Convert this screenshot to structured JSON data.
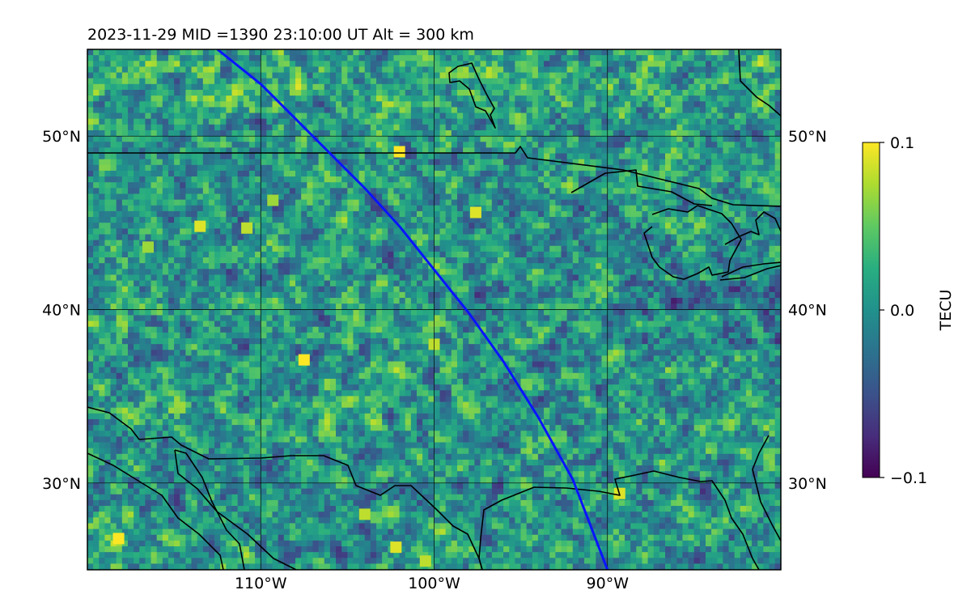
{
  "title": "2023-11-29  MID =1390    23:10:00  UT  Alt = 300 km",
  "colors": {
    "track": "#0a14ff",
    "coast": "#000000",
    "grid": "#000000",
    "viridis": [
      "#440154",
      "#472d7b",
      "#3b528b",
      "#2c728e",
      "#21918c",
      "#28ae80",
      "#5ec962",
      "#addc30",
      "#fde725"
    ]
  },
  "colorbar": {
    "label": "TECU",
    "min": -0.1,
    "max": 0.1,
    "ticks": [
      {
        "value": 0.1,
        "label": "0.1"
      },
      {
        "value": 0.0,
        "label": "0.0"
      },
      {
        "value": -0.1,
        "label": "−0.1"
      }
    ]
  },
  "map": {
    "type": "heatmap",
    "lon_range": [
      -120,
      -80
    ],
    "lat_range": [
      25,
      55
    ],
    "lon_grid": [
      {
        "value": -110,
        "label": "110°W"
      },
      {
        "value": -100,
        "label": "100°W"
      },
      {
        "value": -90,
        "label": "90°W"
      }
    ],
    "lat_grid": [
      {
        "value": 50,
        "label": "50°N"
      },
      {
        "value": 40,
        "label": "40°N"
      },
      {
        "value": 30,
        "label": "30°N"
      }
    ],
    "satellite_track": [
      [
        -112.5,
        55
      ],
      [
        -110,
        53
      ],
      [
        -108,
        51
      ],
      [
        -106,
        49
      ],
      [
        -104,
        47
      ],
      [
        -102,
        44.8
      ],
      [
        -100,
        42.3
      ],
      [
        -98,
        39.8
      ],
      [
        -96,
        37
      ],
      [
        -94,
        33.8
      ],
      [
        -92,
        30.2
      ],
      [
        -90,
        25
      ]
    ],
    "hotspots": [
      {
        "lon": -118.2,
        "lat": 26.8,
        "value": 0.1
      },
      {
        "lon": -113.5,
        "lat": 44.8,
        "value": 0.09
      },
      {
        "lon": -110.8,
        "lat": 44.7,
        "value": 0.08
      },
      {
        "lon": -107.5,
        "lat": 37.1,
        "value": 0.1
      },
      {
        "lon": -102,
        "lat": 49.1,
        "value": 0.1
      },
      {
        "lon": -100,
        "lat": 38,
        "value": 0.08
      },
      {
        "lon": -97.6,
        "lat": 45.6,
        "value": 0.09
      },
      {
        "lon": -89.3,
        "lat": 29.4,
        "value": 0.09
      },
      {
        "lon": -102.2,
        "lat": 26.3,
        "value": 0.09
      },
      {
        "lon": -116.5,
        "lat": 43.6,
        "value": 0.07
      },
      {
        "lon": -100.5,
        "lat": 25.5,
        "value": 0.08
      },
      {
        "lon": -104,
        "lat": 28.2,
        "value": 0.08
      },
      {
        "lon": -109.3,
        "lat": 46.3,
        "value": 0.07
      }
    ]
  }
}
